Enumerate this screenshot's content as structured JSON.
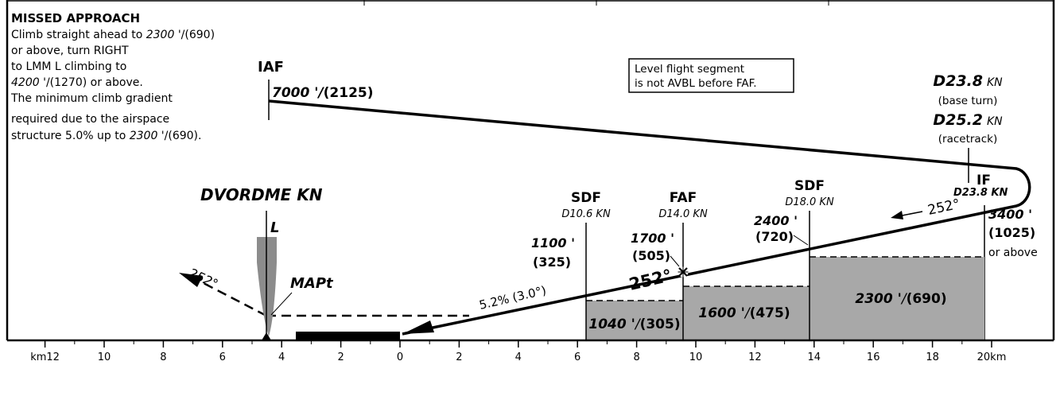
{
  "missed_approach": {
    "title": "MISSED APPROACH",
    "line1_pre": "Climb straight ahead to ",
    "line1_alt": "2300 '",
    "line1_post": "/(690)",
    "line2": "or above, turn RIGHT",
    "line3": "to LMM L climbing to",
    "line4_alt": "4200 '",
    "line4_post": "/(1270) or above.",
    "line5": "The minimum climb gradient",
    "line6": "required due to the airspace",
    "line7_pre": "structure 5.0% up to ",
    "line7_alt": "2300 '",
    "line7_post": "/(690)."
  },
  "iaf": {
    "label": "IAF",
    "alt": "7000 '",
    "alt_sep": "/",
    "height": "(2125)"
  },
  "level_note": {
    "line1": "Level flight segment",
    "line2": "is not AVBL before FAF."
  },
  "turn_info": {
    "d1": "D23.8",
    "d1_suffix": "KN",
    "d1_note": "(base turn)",
    "d2": "D25.2",
    "d2_suffix": "KN",
    "d2_note": "(racetrack)"
  },
  "if_fix": {
    "label": "IF",
    "dist": "D23.8 KN",
    "course": "252°",
    "alt": "3400 '",
    "height": "(1025)",
    "note": "or above"
  },
  "sdf18": {
    "label": "SDF",
    "dist": "D18.0 KN",
    "alt": "2400 '",
    "height": "(720)"
  },
  "faf": {
    "label": "FAF",
    "dist": "D14.0 KN",
    "alt": "1700 '",
    "height": "(505)",
    "course": "252°"
  },
  "sdf10": {
    "label": "SDF",
    "dist": "D10.6 KN",
    "alt": "1100 '",
    "height": "(325)"
  },
  "navaid": {
    "name": "DVORDME KN",
    "lmm": "L"
  },
  "mapt": {
    "label": "MAPt",
    "course": "252°"
  },
  "gradient": {
    "text": "5.2% (3.0°)"
  },
  "minimums": {
    "seg1_alt": "1040 '",
    "seg1_height": "(305)",
    "seg2_alt": "1600 '",
    "seg2_height": "(475)",
    "seg3_alt": "2300 '",
    "seg3_height": "(690)"
  },
  "axis": {
    "ticks": [
      {
        "km": -12,
        "label": "km12"
      },
      {
        "km": -10,
        "label": "10"
      },
      {
        "km": -8,
        "label": "8"
      },
      {
        "km": -6,
        "label": "6"
      },
      {
        "km": -4,
        "label": "4"
      },
      {
        "km": -2,
        "label": "2"
      },
      {
        "km": 0,
        "label": "0"
      },
      {
        "km": 2,
        "label": "2"
      },
      {
        "km": 4,
        "label": "4"
      },
      {
        "km": 6,
        "label": "6"
      },
      {
        "km": 8,
        "label": "8"
      },
      {
        "km": 10,
        "label": "10"
      },
      {
        "km": 12,
        "label": "12"
      },
      {
        "km": 14,
        "label": "14"
      },
      {
        "km": 16,
        "label": "16"
      },
      {
        "km": 18,
        "label": "18"
      },
      {
        "km": 20,
        "label": "20km"
      }
    ]
  },
  "colors": {
    "line": "#000000",
    "fill_gray": "#a8a8a8",
    "lmm_gray": "#8c8c8c",
    "background": "#ffffff"
  }
}
